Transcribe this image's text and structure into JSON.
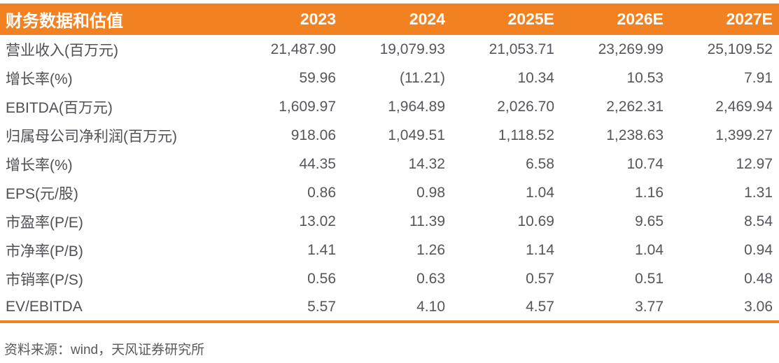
{
  "table": {
    "title": "财务数据和估值",
    "columns": [
      "2023",
      "2024",
      "2025E",
      "2026E",
      "2027E"
    ],
    "rows": [
      {
        "label": "营业收入(百万元)",
        "values": [
          "21,487.90",
          "19,079.93",
          "21,053.71",
          "23,269.99",
          "25,109.52"
        ]
      },
      {
        "label": "增长率(%)",
        "values": [
          "59.96",
          "(11.21)",
          "10.34",
          "10.53",
          "7.91"
        ]
      },
      {
        "label": "EBITDA(百万元)",
        "values": [
          "1,609.97",
          "1,964.89",
          "2,026.70",
          "2,262.31",
          "2,469.94"
        ]
      },
      {
        "label": "归属母公司净利润(百万元)",
        "values": [
          "918.06",
          "1,049.51",
          "1,118.52",
          "1,238.63",
          "1,399.27"
        ]
      },
      {
        "label": "增长率(%)",
        "values": [
          "44.35",
          "14.32",
          "6.58",
          "10.74",
          "12.97"
        ]
      },
      {
        "label": "EPS(元/股)",
        "values": [
          "0.86",
          "0.98",
          "1.04",
          "1.16",
          "1.31"
        ]
      },
      {
        "label": "市盈率(P/E)",
        "values": [
          "13.02",
          "11.39",
          "10.69",
          "9.65",
          "8.54"
        ]
      },
      {
        "label": "市净率(P/B)",
        "values": [
          "1.41",
          "1.26",
          "1.14",
          "1.04",
          "0.94"
        ]
      },
      {
        "label": "市销率(P/S)",
        "values": [
          "0.56",
          "0.63",
          "0.57",
          "0.51",
          "0.48"
        ]
      },
      {
        "label": "EV/EBITDA",
        "values": [
          "5.57",
          "4.10",
          "4.57",
          "3.77",
          "3.06"
        ]
      }
    ],
    "source": "资料来源：wind，天风证券研究所"
  },
  "colors": {
    "accent": "#F28121",
    "header_text": "#FFFFFF",
    "body_text": "#54565C",
    "source_text": "#595959"
  }
}
